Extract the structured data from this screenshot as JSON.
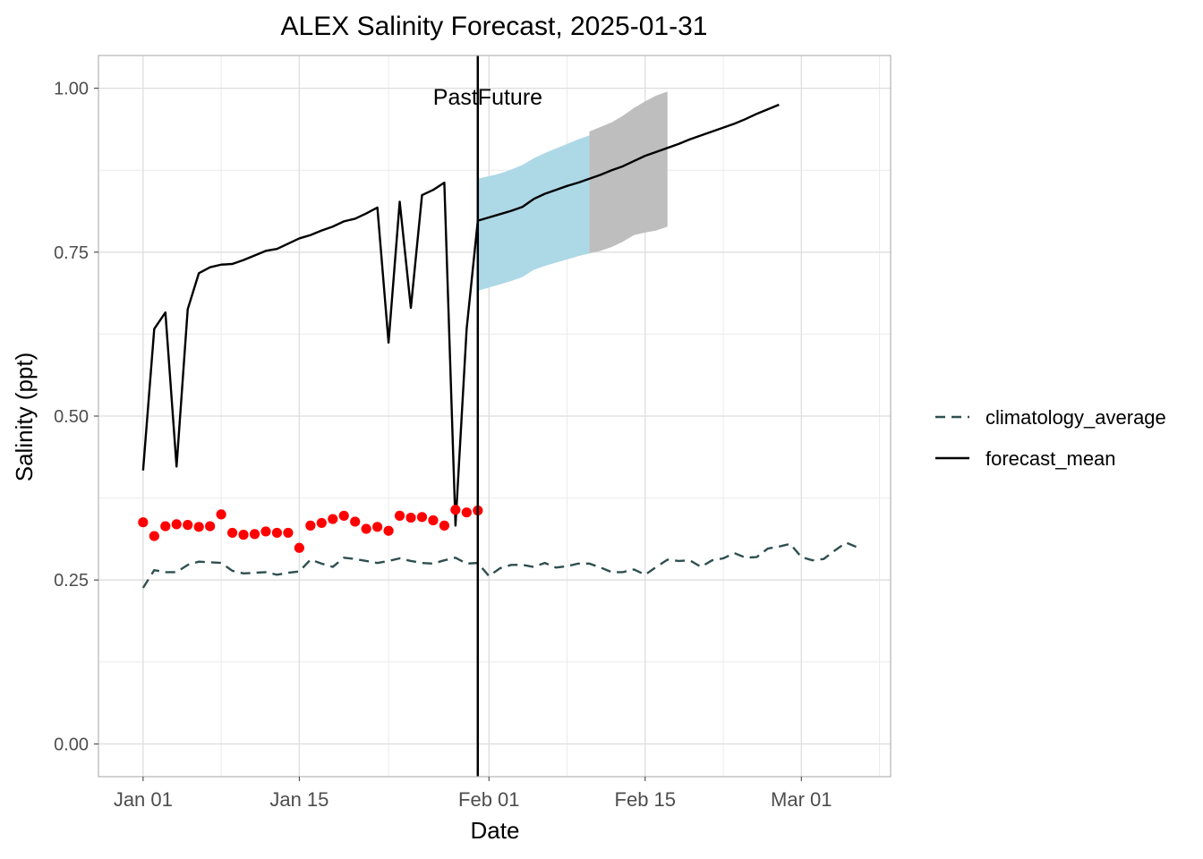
{
  "chart_data": {
    "type": "line",
    "title": "ALEX Salinity Forecast, 2025-01-31",
    "xlabel": "Date",
    "ylabel": "Salinity (ppt)",
    "x_ticks": [
      "Jan 01",
      "Jan 15",
      "Feb 01",
      "Feb 15",
      "Mar 01"
    ],
    "y_ticks": [
      "0.00",
      "0.25",
      "0.50",
      "0.75",
      "1.00"
    ],
    "xlim": [
      "2024-12-28",
      "2025-03-09"
    ],
    "ylim": [
      -0.05,
      1.05
    ],
    "grid": true,
    "legend_position": "right",
    "annotations": {
      "past": "Past",
      "future": "Future"
    },
    "forecast_date": "2025-01-31",
    "colors": {
      "forecast_mean": "#000000",
      "climatology_average": "#2f4f4f",
      "observations": "#ff0000",
      "interval_light": "#add8e6",
      "interval_grey": "#bebebe"
    },
    "legend": [
      {
        "name": "climatology_average",
        "style": "dashed"
      },
      {
        "name": "forecast_mean",
        "style": "solid"
      }
    ],
    "series": [
      {
        "name": "forecast_mean",
        "x": [
          "2025-01-01",
          "2025-01-02",
          "2025-01-03",
          "2025-01-04",
          "2025-01-05",
          "2025-01-06",
          "2025-01-07",
          "2025-01-08",
          "2025-01-09",
          "2025-01-10",
          "2025-01-11",
          "2025-01-12",
          "2025-01-13",
          "2025-01-14",
          "2025-01-15",
          "2025-01-16",
          "2025-01-17",
          "2025-01-18",
          "2025-01-19",
          "2025-01-20",
          "2025-01-21",
          "2025-01-22",
          "2025-01-23",
          "2025-01-24",
          "2025-01-25",
          "2025-01-26",
          "2025-01-27",
          "2025-01-28",
          "2025-01-29",
          "2025-01-30",
          "2025-01-31",
          "2025-02-01",
          "2025-02-02",
          "2025-02-03",
          "2025-02-04",
          "2025-02-05",
          "2025-02-06",
          "2025-02-07",
          "2025-02-08",
          "2025-02-09",
          "2025-02-10",
          "2025-02-11",
          "2025-02-12",
          "2025-02-13",
          "2025-02-14",
          "2025-02-15",
          "2025-02-16",
          "2025-02-17",
          "2025-02-18",
          "2025-02-19",
          "2025-02-20",
          "2025-02-21",
          "2025-02-22",
          "2025-02-23",
          "2025-02-24",
          "2025-02-25",
          "2025-02-26",
          "2025-02-27"
        ],
        "y": [
          0.417,
          0.633,
          0.658,
          0.423,
          0.663,
          0.718,
          0.727,
          0.731,
          0.732,
          0.738,
          0.745,
          0.752,
          0.755,
          0.763,
          0.771,
          0.776,
          0.783,
          0.789,
          0.797,
          0.801,
          0.809,
          0.818,
          0.612,
          0.827,
          0.665,
          0.837,
          0.845,
          0.856,
          0.333,
          0.633,
          0.798,
          0.803,
          0.808,
          0.813,
          0.819,
          0.831,
          0.839,
          0.845,
          0.851,
          0.856,
          0.862,
          0.868,
          0.875,
          0.881,
          0.889,
          0.897,
          0.903,
          0.909,
          0.915,
          0.922,
          0.928,
          0.934,
          0.94,
          0.946,
          0.953,
          0.961,
          0.968,
          0.975
        ]
      },
      {
        "name": "climatology_average",
        "x": [
          "2025-01-01",
          "2025-01-02",
          "2025-01-03",
          "2025-01-04",
          "2025-01-05",
          "2025-01-06",
          "2025-01-07",
          "2025-01-08",
          "2025-01-09",
          "2025-01-10",
          "2025-01-11",
          "2025-01-12",
          "2025-01-13",
          "2025-01-14",
          "2025-01-15",
          "2025-01-16",
          "2025-01-17",
          "2025-01-18",
          "2025-01-19",
          "2025-01-20",
          "2025-01-21",
          "2025-01-22",
          "2025-01-23",
          "2025-01-24",
          "2025-01-25",
          "2025-01-26",
          "2025-01-27",
          "2025-01-28",
          "2025-01-29",
          "2025-01-30",
          "2025-01-31",
          "2025-02-01",
          "2025-02-02",
          "2025-02-03",
          "2025-02-04",
          "2025-02-05",
          "2025-02-06",
          "2025-02-07",
          "2025-02-08",
          "2025-02-09",
          "2025-02-10",
          "2025-02-11",
          "2025-02-12",
          "2025-02-13",
          "2025-02-14",
          "2025-02-15",
          "2025-02-16",
          "2025-02-17",
          "2025-02-18",
          "2025-02-19",
          "2025-02-20",
          "2025-02-21",
          "2025-02-22",
          "2025-02-23",
          "2025-02-24",
          "2025-02-25",
          "2025-02-26",
          "2025-02-27",
          "2025-02-28",
          "2025-03-01",
          "2025-03-02",
          "2025-03-03",
          "2025-03-04",
          "2025-03-05",
          "2025-03-06"
        ],
        "y": [
          0.238,
          0.265,
          0.262,
          0.262,
          0.273,
          0.278,
          0.277,
          0.276,
          0.264,
          0.26,
          0.261,
          0.262,
          0.258,
          0.261,
          0.263,
          0.281,
          0.275,
          0.27,
          0.284,
          0.282,
          0.279,
          0.276,
          0.279,
          0.283,
          0.279,
          0.276,
          0.275,
          0.28,
          0.284,
          0.275,
          0.276,
          0.256,
          0.268,
          0.273,
          0.273,
          0.27,
          0.276,
          0.269,
          0.271,
          0.275,
          0.275,
          0.269,
          0.262,
          0.262,
          0.266,
          0.258,
          0.27,
          0.281,
          0.279,
          0.28,
          0.27,
          0.28,
          0.283,
          0.291,
          0.284,
          0.285,
          0.298,
          0.301,
          0.305,
          0.285,
          0.28,
          0.282,
          0.295,
          0.307,
          0.3
        ]
      },
      {
        "name": "observations",
        "x": [
          "2025-01-01",
          "2025-01-02",
          "2025-01-03",
          "2025-01-04",
          "2025-01-05",
          "2025-01-06",
          "2025-01-07",
          "2025-01-08",
          "2025-01-09",
          "2025-01-10",
          "2025-01-11",
          "2025-01-12",
          "2025-01-13",
          "2025-01-14",
          "2025-01-15",
          "2025-01-16",
          "2025-01-17",
          "2025-01-18",
          "2025-01-19",
          "2025-01-20",
          "2025-01-21",
          "2025-01-22",
          "2025-01-23",
          "2025-01-24",
          "2025-01-25",
          "2025-01-26",
          "2025-01-27",
          "2025-01-28",
          "2025-01-29",
          "2025-01-30",
          "2025-01-31"
        ],
        "y": [
          0.338,
          0.317,
          0.332,
          0.335,
          0.334,
          0.331,
          0.332,
          0.35,
          0.322,
          0.319,
          0.32,
          0.324,
          0.322,
          0.322,
          0.299,
          0.333,
          0.337,
          0.343,
          0.348,
          0.339,
          0.328,
          0.331,
          0.325,
          0.348,
          0.345,
          0.346,
          0.341,
          0.333,
          0.357,
          0.353,
          0.356
        ]
      }
    ],
    "interval_light": {
      "x": [
        "2025-01-31",
        "2025-02-01",
        "2025-02-02",
        "2025-02-03",
        "2025-02-04",
        "2025-02-05",
        "2025-02-06",
        "2025-02-07",
        "2025-02-08",
        "2025-02-09",
        "2025-02-10"
      ],
      "lower": [
        0.691,
        0.696,
        0.701,
        0.706,
        0.712,
        0.723,
        0.729,
        0.734,
        0.739,
        0.744,
        0.748
      ],
      "upper": [
        0.862,
        0.866,
        0.87,
        0.876,
        0.883,
        0.893,
        0.901,
        0.908,
        0.915,
        0.922,
        0.928
      ]
    },
    "interval_grey": {
      "x": [
        "2025-02-10",
        "2025-02-11",
        "2025-02-12",
        "2025-02-13",
        "2025-02-14",
        "2025-02-15",
        "2025-02-16",
        "2025-02-17"
      ],
      "lower": [
        0.748,
        0.752,
        0.758,
        0.766,
        0.776,
        0.78,
        0.783,
        0.789
      ],
      "upper": [
        0.934,
        0.941,
        0.948,
        0.958,
        0.97,
        0.98,
        0.989,
        0.995
      ]
    }
  }
}
